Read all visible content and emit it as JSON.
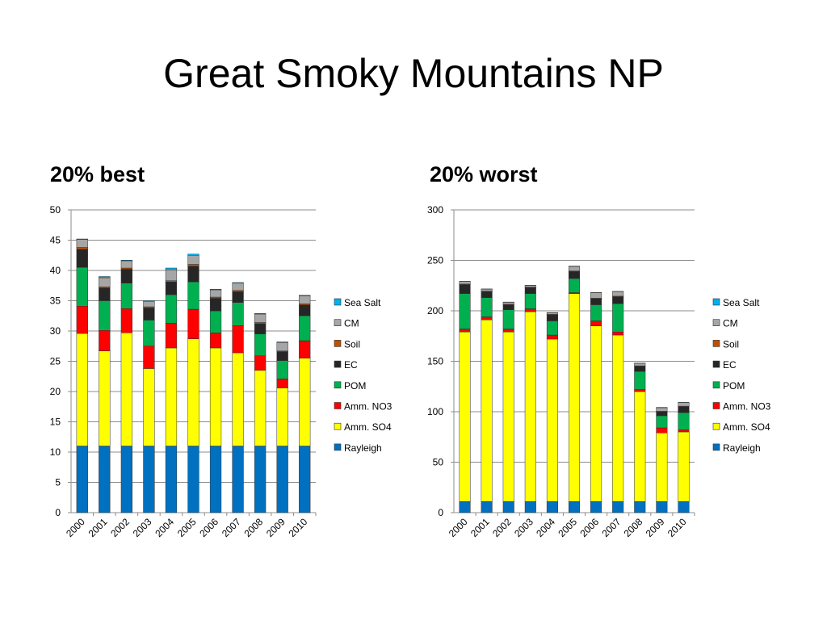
{
  "title": "Great Smoky Mountains NP",
  "colors": {
    "Rayleigh": "#0070c0",
    "Amm. SO4": "#ffff00",
    "Amm. NO3": "#ff0000",
    "POM": "#00b050",
    "EC": "#262626",
    "Soil": "#c05000",
    "CM": "#a6a6a6",
    "Sea Salt": "#00b0f0"
  },
  "chart_data": [
    {
      "type": "bar",
      "stacked": true,
      "title": "20% best",
      "categories": [
        "2000",
        "2001",
        "2002",
        "2003",
        "2004",
        "2005",
        "2006",
        "2007",
        "2008",
        "2009",
        "2010"
      ],
      "ylim": [
        0,
        50
      ],
      "yticks": [
        0,
        5,
        10,
        15,
        20,
        25,
        30,
        35,
        40,
        45,
        50
      ],
      "legend": [
        "Sea Salt",
        "CM",
        "Soil",
        "EC",
        "POM",
        "Amm. NO3",
        "Amm. SO4",
        "Rayleigh"
      ],
      "grid": true,
      "series": [
        {
          "name": "Rayleigh",
          "values": [
            11,
            11,
            11,
            11,
            11,
            11,
            11,
            11,
            11,
            11,
            11
          ]
        },
        {
          "name": "Amm. SO4",
          "values": [
            18.6,
            15.7,
            18.7,
            12.8,
            16.2,
            17.7,
            16.2,
            15.4,
            12.5,
            9.6,
            14.5
          ]
        },
        {
          "name": "Amm. NO3",
          "values": [
            4.5,
            3.4,
            4.0,
            3.7,
            4.1,
            4.9,
            2.5,
            4.5,
            2.4,
            1.5,
            2.9
          ]
        },
        {
          "name": "POM",
          "values": [
            6.4,
            4.9,
            4.2,
            4.3,
            4.7,
            4.5,
            3.6,
            3.8,
            3.6,
            3.0,
            4.1
          ]
        },
        {
          "name": "EC",
          "values": [
            3.0,
            2.1,
            2.3,
            2.0,
            2.1,
            2.6,
            2.1,
            1.8,
            1.7,
            1.5,
            1.8
          ]
        },
        {
          "name": "Soil",
          "values": [
            0.3,
            0.2,
            0.2,
            0.2,
            0.2,
            0.3,
            0.2,
            0.2,
            0.2,
            0.1,
            0.2
          ]
        },
        {
          "name": "CM",
          "values": [
            1.3,
            1.5,
            1.2,
            0.9,
            1.8,
            1.5,
            1.2,
            1.2,
            1.4,
            1.4,
            1.3
          ]
        },
        {
          "name": "Sea Salt",
          "values": [
            0.1,
            0.2,
            0.1,
            0.1,
            0.3,
            0.2,
            0.1,
            0.1,
            0.1,
            0.1,
            0.1
          ]
        }
      ]
    },
    {
      "type": "bar",
      "stacked": true,
      "title": "20% worst",
      "categories": [
        "2000",
        "2001",
        "2002",
        "2003",
        "2004",
        "2005",
        "2006",
        "2007",
        "2008",
        "2009",
        "2010"
      ],
      "ylim": [
        0,
        300
      ],
      "yticks": [
        0,
        50,
        100,
        150,
        200,
        250,
        300
      ],
      "legend": [
        "Sea Salt",
        "CM",
        "Soil",
        "EC",
        "POM",
        "Amm. NO3",
        "Amm. SO4",
        "Rayleigh"
      ],
      "grid": true,
      "series": [
        {
          "name": "Rayleigh",
          "values": [
            11,
            11,
            11,
            11,
            11,
            11,
            11,
            11,
            11,
            11,
            11
          ]
        },
        {
          "name": "Amm. SO4",
          "values": [
            168,
            180,
            168,
            188,
            161,
            206,
            174,
            165,
            109,
            68,
            69
          ]
        },
        {
          "name": "Amm. NO3",
          "values": [
            3,
            3,
            3,
            3,
            4,
            1,
            5,
            3,
            2,
            5,
            2
          ]
        },
        {
          "name": "POM",
          "values": [
            35,
            19,
            19,
            15,
            14,
            14,
            16,
            28,
            18,
            12,
            17
          ]
        },
        {
          "name": "EC",
          "values": [
            9,
            6,
            5,
            6,
            6,
            7,
            6,
            7,
            5,
            4,
            6
          ]
        },
        {
          "name": "Soil",
          "values": [
            0.5,
            0.5,
            0.5,
            0.5,
            0.5,
            0.5,
            0.5,
            0.5,
            0.5,
            0.5,
            0.5
          ]
        },
        {
          "name": "CM",
          "values": [
            2.5,
            2,
            2,
            1.5,
            1.5,
            4.5,
            5.5,
            4.5,
            2.5,
            3.5,
            3.5
          ]
        },
        {
          "name": "Sea Salt",
          "values": [
            0.3,
            0.2,
            0.2,
            0.3,
            0.3,
            0.3,
            0.2,
            0.3,
            0.2,
            0.3,
            0.3
          ]
        }
      ]
    }
  ]
}
